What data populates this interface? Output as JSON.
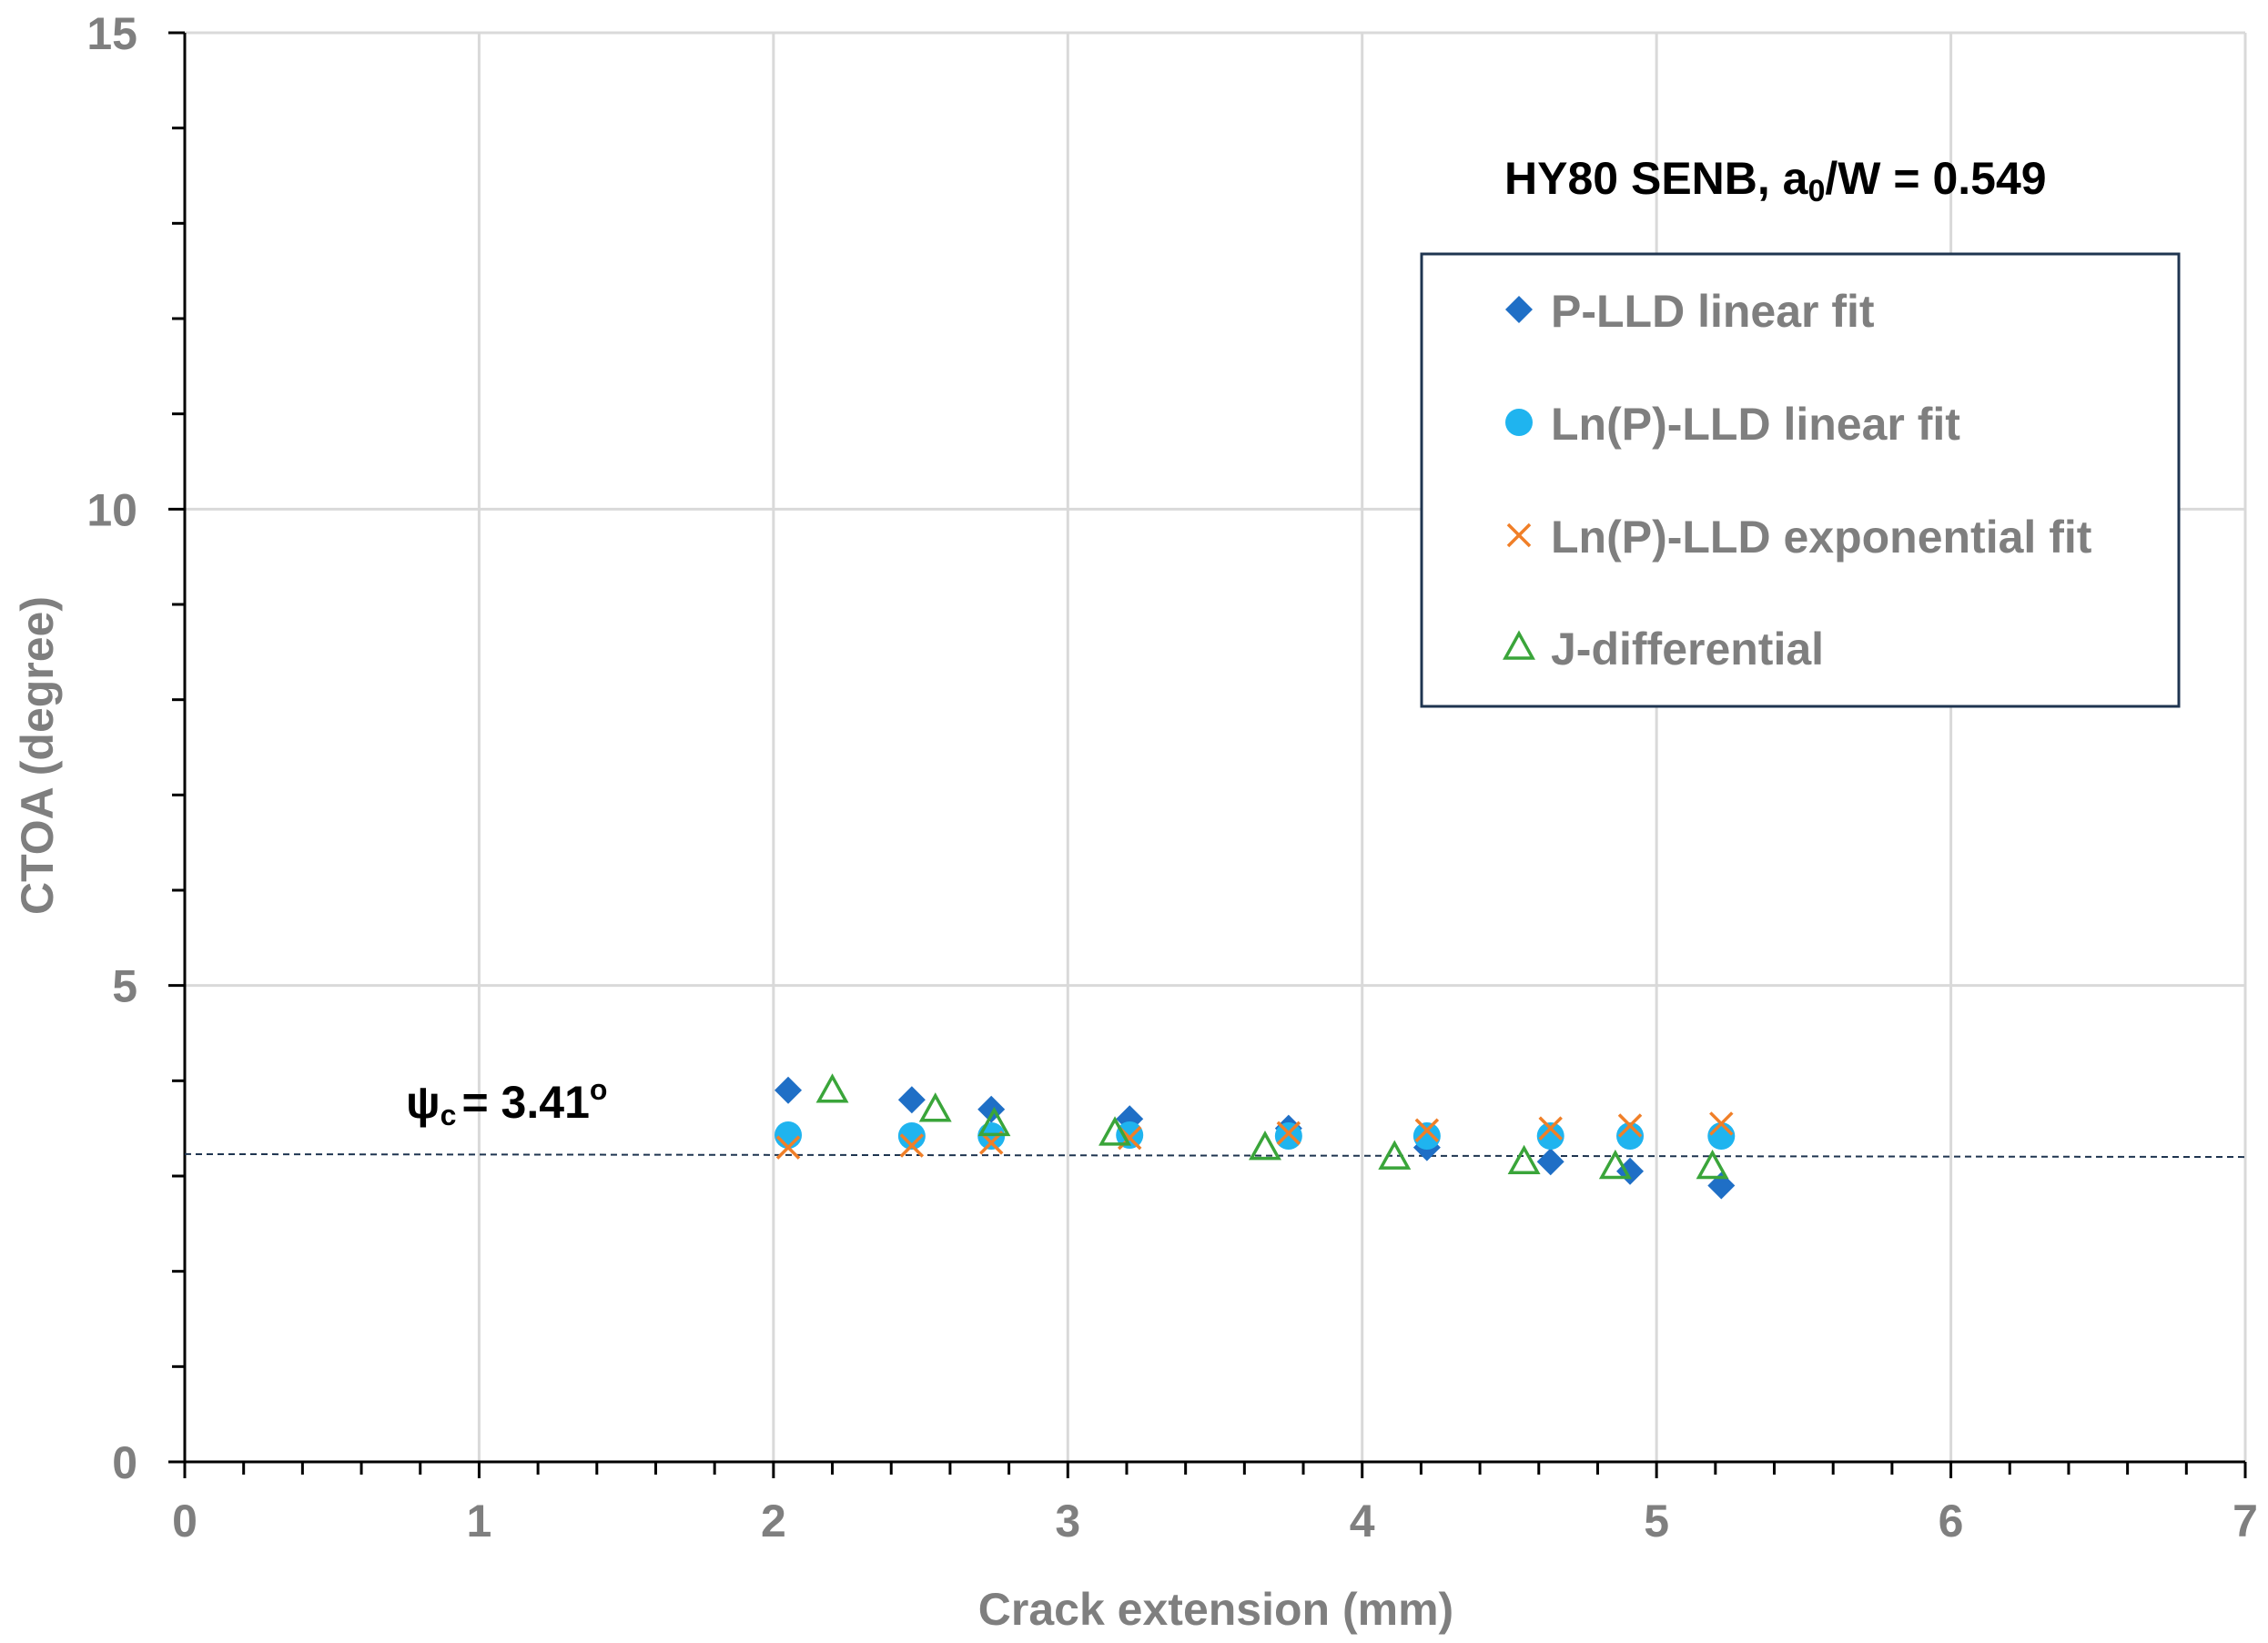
{
  "chart_data": {
    "type": "scatter",
    "title": "",
    "xlabel": "Crack extension (mm)",
    "ylabel": "CTOA (degree)",
    "xlim": [
      0,
      7
    ],
    "ylim": [
      0,
      15
    ],
    "x_ticks": [
      0,
      1,
      2,
      3,
      4,
      5,
      6,
      7
    ],
    "y_ticks": [
      0,
      5,
      10,
      15
    ],
    "x_tick_labels": [
      "0",
      "1",
      "2",
      "3",
      "4",
      "5",
      "6",
      "7"
    ],
    "y_tick_labels": [
      "0",
      "5",
      "10",
      "15"
    ],
    "grid": true,
    "legend_position": "right",
    "series": [
      {
        "name": "P-LLD linear fit",
        "marker": "diamond",
        "color": "#1f6fc6",
        "x": [
          2.05,
          2.47,
          2.74,
          3.21,
          3.75,
          4.22,
          4.64,
          4.91,
          5.22
        ],
        "y": [
          3.9,
          3.8,
          3.7,
          3.6,
          3.5,
          3.3,
          3.15,
          3.05,
          2.9
        ]
      },
      {
        "name": "Ln(P)-LLD linear fit",
        "marker": "circle",
        "color": "#1fb4ef",
        "x": [
          2.05,
          2.47,
          2.74,
          3.21,
          3.75,
          4.22,
          4.64,
          4.91,
          5.22
        ],
        "y": [
          3.43,
          3.42,
          3.42,
          3.43,
          3.42,
          3.42,
          3.42,
          3.42,
          3.42
        ]
      },
      {
        "name": "Ln(P)-LLD exponential fit",
        "marker": "x",
        "color": "#f07f28",
        "x": [
          2.05,
          2.47,
          2.74,
          3.21,
          3.75,
          4.22,
          4.64,
          4.91,
          5.22
        ],
        "y": [
          3.3,
          3.32,
          3.35,
          3.4,
          3.45,
          3.48,
          3.5,
          3.53,
          3.55
        ]
      },
      {
        "name": "J-differential",
        "marker": "triangle-open",
        "color": "#3aa53a",
        "x": [
          2.2,
          2.55,
          2.75,
          3.16,
          3.67,
          4.11,
          4.55,
          4.86,
          5.19
        ],
        "y": [
          3.9,
          3.7,
          3.55,
          3.45,
          3.3,
          3.2,
          3.15,
          3.1,
          3.1
        ]
      }
    ],
    "reference_line": {
      "label": "ψ",
      "label_subscript": "c",
      "label_value": "= 3.41",
      "label_degree": "o",
      "x": [
        0,
        7
      ],
      "y": [
        3.23,
        3.2
      ],
      "color": "#1f3550",
      "style": "dashed"
    },
    "annotation": {
      "prefix": "HY80 SENB, a",
      "subscript": "0",
      "suffix": "/W = 0.549"
    }
  }
}
